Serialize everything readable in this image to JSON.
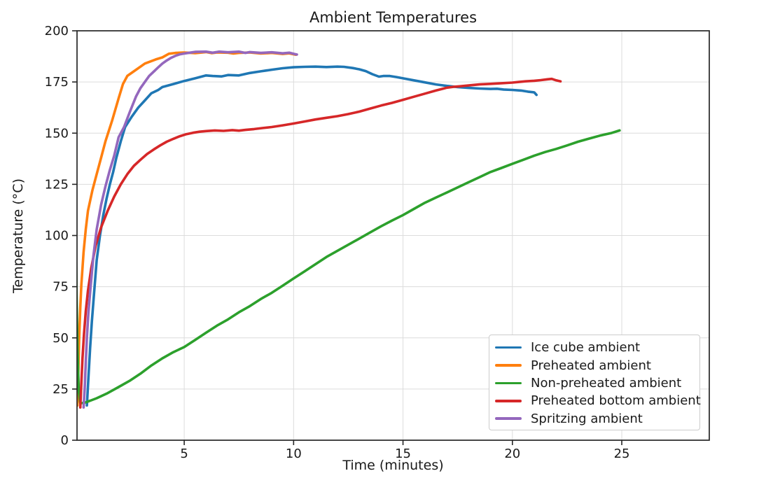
{
  "title": "Ambient Temperatures",
  "chart_data": {
    "type": "line",
    "title": "Ambient Temperatures",
    "xlabel": "Time (minutes)",
    "ylabel": "Temperature (°C)",
    "xlim": [
      0.1,
      29.0
    ],
    "ylim": [
      0,
      200
    ],
    "xticks": [
      5,
      10,
      15,
      20,
      25
    ],
    "yticks": [
      0,
      25,
      50,
      75,
      100,
      125,
      150,
      175,
      200
    ],
    "grid": true,
    "grid_color": "#dcdcdc",
    "spine_color": "#262626",
    "text_color": "#1a1a1a",
    "background": "#ffffff",
    "legend_position": "lower right",
    "line_width": 3.6,
    "series": [
      {
        "name": "Ice cube ambient",
        "color": "#1f77b4",
        "points": [
          [
            0.55,
            17
          ],
          [
            0.62,
            30
          ],
          [
            0.7,
            45
          ],
          [
            0.78,
            58
          ],
          [
            0.88,
            72
          ],
          [
            1,
            88
          ],
          [
            1.15,
            100
          ],
          [
            1.3,
            110
          ],
          [
            1.45,
            118
          ],
          [
            1.6,
            125
          ],
          [
            1.75,
            131
          ],
          [
            1.9,
            138
          ],
          [
            2.1,
            146
          ],
          [
            2.3,
            153
          ],
          [
            2.6,
            158
          ],
          [
            2.9,
            162.5
          ],
          [
            3.2,
            166
          ],
          [
            3.5,
            169.5
          ],
          [
            3.8,
            171
          ],
          [
            4,
            172.5
          ],
          [
            4.5,
            174
          ],
          [
            5,
            175.5
          ],
          [
            5.5,
            176.8
          ],
          [
            6,
            178.2
          ],
          [
            6.3,
            177.9
          ],
          [
            6.7,
            177.7
          ],
          [
            7,
            178.4
          ],
          [
            7.5,
            178.2
          ],
          [
            8,
            179.4
          ],
          [
            8.5,
            180.2
          ],
          [
            9,
            181
          ],
          [
            9.5,
            181.7
          ],
          [
            10,
            182.2
          ],
          [
            10.5,
            182.4
          ],
          [
            11,
            182.5
          ],
          [
            11.5,
            182.3
          ],
          [
            12,
            182.5
          ],
          [
            12.3,
            182.4
          ],
          [
            12.7,
            181.8
          ],
          [
            13,
            181.2
          ],
          [
            13.3,
            180.3
          ],
          [
            13.6,
            178.8
          ],
          [
            13.9,
            177.6
          ],
          [
            14.1,
            177.9
          ],
          [
            14.4,
            177.9
          ],
          [
            14.7,
            177.4
          ],
          [
            15,
            176.8
          ],
          [
            15.5,
            175.8
          ],
          [
            16,
            174.8
          ],
          [
            16.5,
            173.8
          ],
          [
            17,
            173.1
          ],
          [
            17.5,
            172.5
          ],
          [
            18,
            172.1
          ],
          [
            18.5,
            171.8
          ],
          [
            19,
            171.6
          ],
          [
            19.3,
            171.7
          ],
          [
            19.6,
            171.3
          ],
          [
            20,
            171.1
          ],
          [
            20.4,
            170.8
          ],
          [
            20.7,
            170.3
          ],
          [
            21,
            169.9
          ],
          [
            21.1,
            168.7
          ]
        ]
      },
      {
        "name": "Preheated ambient",
        "color": "#ff7f0e",
        "points": [
          [
            0.12,
            17
          ],
          [
            0.15,
            30
          ],
          [
            0.2,
            50
          ],
          [
            0.25,
            65
          ],
          [
            0.3,
            76
          ],
          [
            0.4,
            92
          ],
          [
            0.5,
            103
          ],
          [
            0.6,
            112
          ],
          [
            0.8,
            122
          ],
          [
            1,
            130
          ],
          [
            1.2,
            138
          ],
          [
            1.4,
            146
          ],
          [
            1.7,
            156
          ],
          [
            2,
            167
          ],
          [
            2.2,
            174
          ],
          [
            2.4,
            178
          ],
          [
            2.8,
            181
          ],
          [
            3.2,
            184
          ],
          [
            3.7,
            186
          ],
          [
            4,
            187
          ],
          [
            4.3,
            188.8
          ],
          [
            4.6,
            189.2
          ],
          [
            5,
            189.4
          ],
          [
            5.5,
            189.1
          ],
          [
            6,
            189.6
          ],
          [
            6.25,
            189.1
          ],
          [
            6.5,
            189.4
          ],
          [
            7,
            189.3
          ],
          [
            7.25,
            188.9
          ],
          [
            7.5,
            189.2
          ],
          [
            8,
            189.4
          ],
          [
            8.5,
            188.9
          ],
          [
            9,
            189.2
          ],
          [
            9.5,
            188.7
          ],
          [
            9.8,
            189
          ],
          [
            10.1,
            188.3
          ]
        ]
      },
      {
        "name": "Non-preheated ambient",
        "color": "#2ca02c",
        "points": [
          [
            0.05,
            95
          ],
          [
            0.08,
            70
          ],
          [
            0.12,
            45
          ],
          [
            0.18,
            24
          ],
          [
            0.25,
            18
          ],
          [
            0.5,
            18.5
          ],
          [
            0.75,
            19.5
          ],
          [
            1,
            20.5
          ],
          [
            1.5,
            23
          ],
          [
            2,
            26
          ],
          [
            2.5,
            29
          ],
          [
            3,
            32.5
          ],
          [
            3.5,
            36.5
          ],
          [
            4,
            40
          ],
          [
            4.5,
            43
          ],
          [
            5,
            45.5
          ],
          [
            5.5,
            49
          ],
          [
            6,
            52.5
          ],
          [
            6.5,
            56
          ],
          [
            7,
            59
          ],
          [
            7.5,
            62.5
          ],
          [
            8,
            65.5
          ],
          [
            8.5,
            69
          ],
          [
            9,
            72
          ],
          [
            9.5,
            75.5
          ],
          [
            10,
            79
          ],
          [
            10.5,
            82.5
          ],
          [
            11,
            86
          ],
          [
            11.5,
            89.5
          ],
          [
            12,
            92.5
          ],
          [
            12.5,
            95.5
          ],
          [
            13,
            98.5
          ],
          [
            13.5,
            101.5
          ],
          [
            14,
            104.5
          ],
          [
            14.5,
            107.3
          ],
          [
            15,
            110
          ],
          [
            15.5,
            113
          ],
          [
            16,
            116
          ],
          [
            16.5,
            118.5
          ],
          [
            17,
            121
          ],
          [
            17.5,
            123.5
          ],
          [
            18,
            126
          ],
          [
            18.5,
            128.5
          ],
          [
            19,
            131
          ],
          [
            19.5,
            133
          ],
          [
            20,
            135
          ],
          [
            20.5,
            137
          ],
          [
            21,
            139
          ],
          [
            21.5,
            140.8
          ],
          [
            22,
            142.3
          ],
          [
            22.5,
            144
          ],
          [
            23,
            145.8
          ],
          [
            23.5,
            147.3
          ],
          [
            24,
            148.8
          ],
          [
            24.5,
            150
          ],
          [
            24.9,
            151.3
          ]
        ]
      },
      {
        "name": "Preheated bottom ambient",
        "color": "#d62728",
        "points": [
          [
            0.25,
            16
          ],
          [
            0.3,
            28
          ],
          [
            0.35,
            40
          ],
          [
            0.42,
            52
          ],
          [
            0.5,
            63
          ],
          [
            0.6,
            73
          ],
          [
            0.75,
            84
          ],
          [
            0.95,
            95
          ],
          [
            1.2,
            104
          ],
          [
            1.5,
            112
          ],
          [
            1.8,
            119
          ],
          [
            2.1,
            125
          ],
          [
            2.4,
            130
          ],
          [
            2.7,
            134
          ],
          [
            3,
            137
          ],
          [
            3.3,
            139.8
          ],
          [
            3.6,
            142
          ],
          [
            3.9,
            144
          ],
          [
            4.2,
            145.8
          ],
          [
            4.5,
            147.2
          ],
          [
            4.8,
            148.5
          ],
          [
            5.1,
            149.5
          ],
          [
            5.4,
            150.2
          ],
          [
            5.7,
            150.7
          ],
          [
            6,
            151
          ],
          [
            6.4,
            151.3
          ],
          [
            6.8,
            151.1
          ],
          [
            7.2,
            151.5
          ],
          [
            7.5,
            151.2
          ],
          [
            7.8,
            151.6
          ],
          [
            8.2,
            152
          ],
          [
            8.6,
            152.5
          ],
          [
            9,
            153
          ],
          [
            9.5,
            153.8
          ],
          [
            10,
            154.7
          ],
          [
            10.5,
            155.7
          ],
          [
            11,
            156.7
          ],
          [
            11.5,
            157.5
          ],
          [
            12,
            158.3
          ],
          [
            12.5,
            159.3
          ],
          [
            13,
            160.5
          ],
          [
            13.5,
            162
          ],
          [
            14,
            163.5
          ],
          [
            14.5,
            164.8
          ],
          [
            15,
            166.3
          ],
          [
            15.5,
            167.8
          ],
          [
            16,
            169.3
          ],
          [
            16.5,
            170.8
          ],
          [
            17,
            172.2
          ],
          [
            17.3,
            172.6
          ],
          [
            17.6,
            172.9
          ],
          [
            18,
            173.3
          ],
          [
            18.5,
            173.8
          ],
          [
            19,
            174.1
          ],
          [
            19.5,
            174.4
          ],
          [
            20,
            174.7
          ],
          [
            20.3,
            175
          ],
          [
            20.6,
            175.3
          ],
          [
            21,
            175.6
          ],
          [
            21.3,
            175.9
          ],
          [
            21.6,
            176.3
          ],
          [
            21.8,
            176.5
          ],
          [
            22,
            175.8
          ],
          [
            22.2,
            175.3
          ]
        ]
      },
      {
        "name": "Spritzing ambient",
        "color": "#9467bd",
        "points": [
          [
            0.4,
            16
          ],
          [
            0.45,
            25
          ],
          [
            0.5,
            38
          ],
          [
            0.55,
            50
          ],
          [
            0.62,
            62
          ],
          [
            0.72,
            75
          ],
          [
            0.85,
            90
          ],
          [
            1,
            103
          ],
          [
            1.2,
            115
          ],
          [
            1.4,
            124
          ],
          [
            1.6,
            132
          ],
          [
            1.8,
            139
          ],
          [
            2,
            148
          ],
          [
            2.25,
            153
          ],
          [
            2.5,
            160
          ],
          [
            2.8,
            168
          ],
          [
            3,
            172
          ],
          [
            3.2,
            175
          ],
          [
            3.4,
            178
          ],
          [
            3.6,
            180
          ],
          [
            3.8,
            182
          ],
          [
            4,
            184
          ],
          [
            4.2,
            185.5
          ],
          [
            4.4,
            186.8
          ],
          [
            4.6,
            187.8
          ],
          [
            4.8,
            188.5
          ],
          [
            5,
            188.9
          ],
          [
            5.25,
            189.3
          ],
          [
            5.5,
            189.7
          ],
          [
            6,
            189.8
          ],
          [
            6.3,
            189.3
          ],
          [
            6.6,
            189.8
          ],
          [
            7,
            189.5
          ],
          [
            7.5,
            189.8
          ],
          [
            7.8,
            189.2
          ],
          [
            8,
            189.6
          ],
          [
            8.5,
            189.2
          ],
          [
            9,
            189.5
          ],
          [
            9.5,
            189
          ],
          [
            9.8,
            189.3
          ],
          [
            10.05,
            188.6
          ],
          [
            10.15,
            188.4
          ]
        ]
      }
    ]
  }
}
